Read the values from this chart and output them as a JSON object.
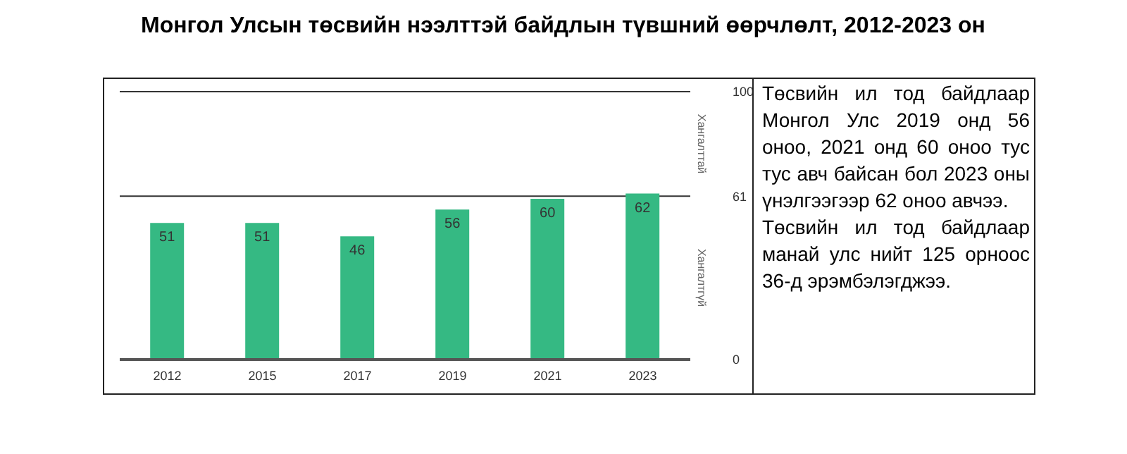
{
  "chart_data": {
    "type": "bar",
    "title": "Монгол Улсын төсвийн нээлттэй байдлын түвшний өөрчлөлт, 2012-2023 он",
    "categories": [
      "2012",
      "2015",
      "2017",
      "2019",
      "2021",
      "2023"
    ],
    "values": [
      51,
      51,
      46,
      56,
      60,
      62
    ],
    "color": "#35b983",
    "data_labels": true,
    "ylim": [
      0,
      100
    ],
    "yticks": [
      0,
      61,
      100
    ],
    "grid": "y",
    "annotations": [
      "Хангалттай",
      "Хангалтгүй",
      "Төсвийн ил тод байдлаар Монгол Улс 2019 онд 56 оноо, 2021 онд 60 оноо тус тус авч байсан бол 2023 оны үнэлгээгээр 62 оноо авчээ.",
      "Төсвийн ил тод байдлаар манай улс нийт 125 орноос 36-д эрэмбэлэгджээ."
    ]
  }
}
